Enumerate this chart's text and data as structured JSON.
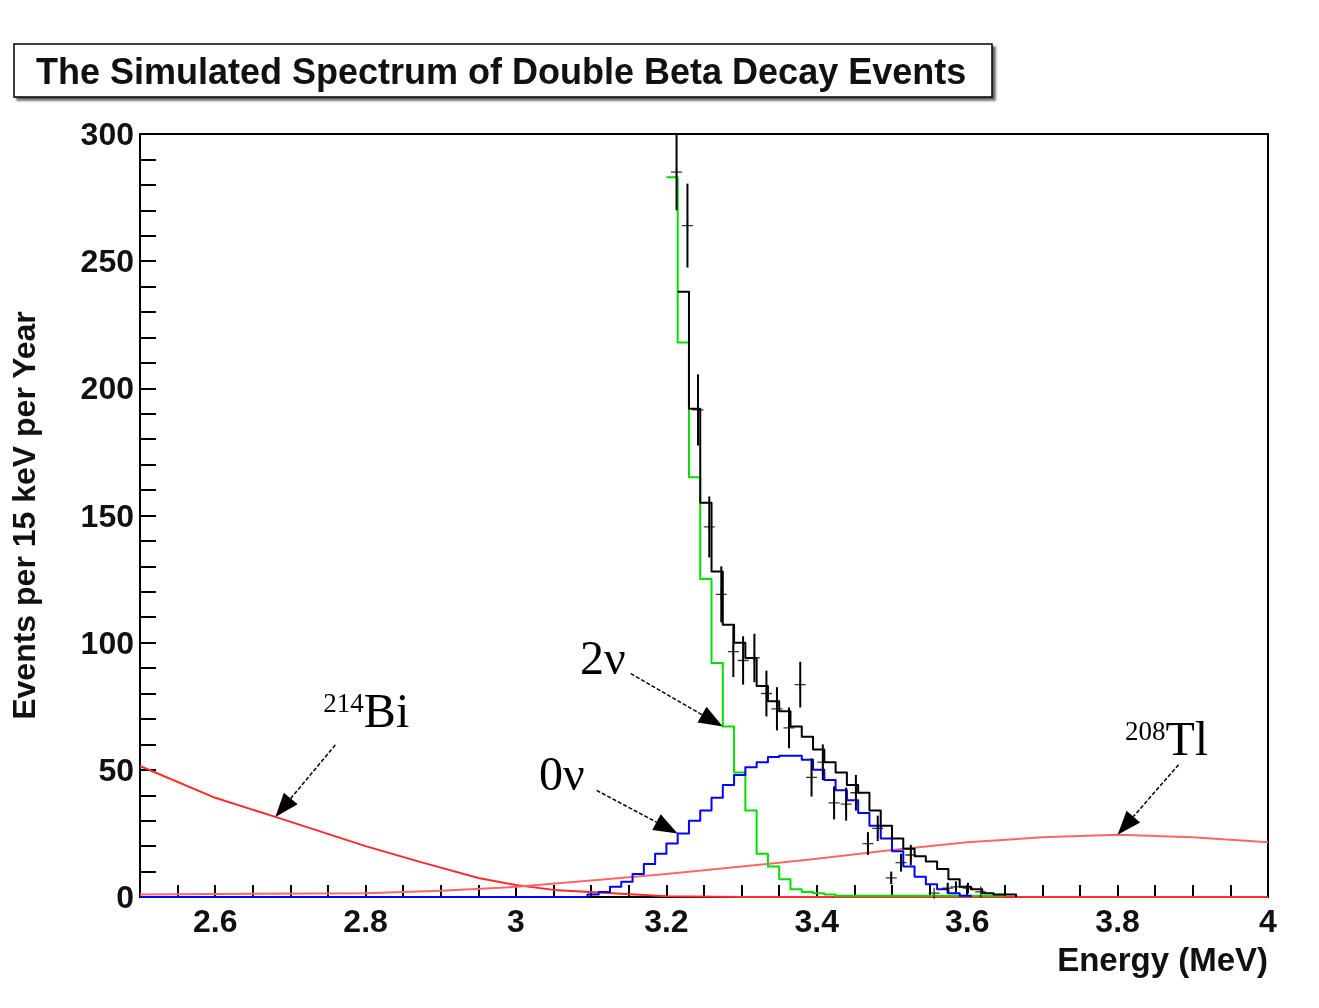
{
  "chart_data": {
    "type": "step",
    "title": "The Simulated Spectrum of Double Beta Decay Events",
    "xlabel": "Energy (MeV)",
    "ylabel": "Events per 15 keV per Year",
    "xlim": [
      2.5,
      4
    ],
    "xticks": [
      {
        "value": 2.55,
        "label": null
      },
      2.6,
      {
        "value": 2.65,
        "label": null
      },
      {
        "value": 2.7,
        "label": null
      },
      {
        "value": 2.75,
        "label": null
      },
      2.8,
      {
        "value": 2.85,
        "label": null
      },
      {
        "value": 2.9,
        "label": null
      },
      {
        "value": 2.95,
        "label": null
      },
      3,
      {
        "value": 3.05,
        "label": null
      },
      {
        "value": 3.1,
        "label": null
      },
      {
        "value": 3.15,
        "label": null
      },
      3.2,
      {
        "value": 3.25,
        "label": null
      },
      {
        "value": 3.3,
        "label": null
      },
      {
        "value": 3.35,
        "label": null
      },
      3.4,
      {
        "value": 3.45,
        "label": null
      },
      {
        "value": 3.5,
        "label": null
      },
      {
        "value": 3.55,
        "label": null
      },
      3.6,
      {
        "value": 3.65,
        "label": null
      },
      {
        "value": 3.7,
        "label": null
      },
      {
        "value": 3.75,
        "label": null
      },
      3.8,
      {
        "value": 3.85,
        "label": null
      },
      {
        "value": 3.9,
        "label": null
      },
      {
        "value": 3.95,
        "label": null
      },
      4
    ],
    "ylim": [
      0,
      300
    ],
    "yticks": [
      0,
      {
        "value": 10,
        "label": null
      },
      {
        "value": 20,
        "label": null
      },
      {
        "value": 30,
        "label": null
      },
      {
        "value": 40,
        "label": null
      },
      50,
      {
        "value": 60,
        "label": null
      },
      {
        "value": 70,
        "label": null
      },
      {
        "value": 80,
        "label": null
      },
      {
        "value": 90,
        "label": null
      },
      100,
      {
        "value": 110,
        "label": null
      },
      {
        "value": 120,
        "label": null
      },
      {
        "value": 130,
        "label": null
      },
      {
        "value": 140,
        "label": null
      },
      150,
      {
        "value": 160,
        "label": null
      },
      {
        "value": 170,
        "label": null
      },
      {
        "value": 180,
        "label": null
      },
      {
        "value": 190,
        "label": null
      },
      200,
      {
        "value": 210,
        "label": null
      },
      {
        "value": 220,
        "label": null
      },
      {
        "value": 230,
        "label": null
      },
      {
        "value": 240,
        "label": null
      },
      250,
      {
        "value": 260,
        "label": null
      },
      {
        "value": 270,
        "label": null
      },
      {
        "value": 280,
        "label": null
      },
      {
        "value": 290,
        "label": null
      },
      300
    ],
    "grid": false,
    "marker": "none",
    "series": [
      {
        "type": "line",
        "color": "#ff2a2a",
        "x": [
          2.5,
          2.6,
          2.68,
          2.8,
          2.87,
          2.95,
          3.0,
          3.05,
          3.2,
          3.3,
          3.5,
          4.0
        ],
        "values": [
          51.5,
          39,
          31.5,
          20,
          14,
          7.5,
          4.7,
          2.8,
          0.3,
          0,
          0,
          0
        ]
      },
      {
        "type": "line",
        "color": "#ff6666",
        "x": [
          2.5,
          2.8,
          2.9,
          3.0,
          3.1,
          3.2,
          3.3,
          3.4,
          3.5,
          3.6,
          3.7,
          3.8,
          3.9,
          4.0
        ],
        "values": [
          1,
          1.5,
          2.5,
          4,
          6.5,
          9,
          12,
          15,
          18.5,
          21.5,
          23.5,
          24.5,
          23.5,
          21.5
        ]
      },
      {
        "color": "#00e000",
        "x": [
          3.2,
          3.215,
          3.23,
          3.245,
          3.26,
          3.275,
          3.29,
          3.305,
          3.32,
          3.335,
          3.35,
          3.365,
          3.38,
          3.395,
          3.41,
          3.425,
          3.44,
          3.455,
          3.47,
          3.485,
          3.5,
          3.515,
          3.53,
          3.545,
          3.56,
          3.575,
          3.59,
          3.605,
          3.62,
          3.635,
          3.65
        ],
        "values": [
          283,
          218,
          165,
          125,
          92,
          67,
          49,
          34,
          17,
          12,
          7,
          3,
          2,
          1.5,
          1,
          0.5,
          0.5,
          0.5,
          0.5,
          0.5,
          0.5,
          0.5,
          0.5,
          0.5,
          0.5,
          0.5,
          0.5,
          0.5,
          0.5,
          0.5,
          0.5
        ]
      },
      {
        "color": "#0000ff",
        "x": [
          2.5,
          3.095,
          3.11,
          3.125,
          3.14,
          3.155,
          3.17,
          3.185,
          3.2,
          3.215,
          3.23,
          3.245,
          3.26,
          3.275,
          3.29,
          3.305,
          3.32,
          3.335,
          3.35,
          3.365,
          3.38,
          3.395,
          3.41,
          3.425,
          3.44,
          3.455,
          3.47,
          3.485,
          3.5,
          3.515,
          3.53,
          3.545,
          3.56,
          3.575,
          3.59,
          3.605
        ],
        "values": [
          0,
          1,
          2,
          4,
          6,
          9,
          13,
          17,
          21,
          25,
          30,
          34,
          39,
          44,
          48,
          51,
          53,
          55,
          55.5,
          55.5,
          54,
          50,
          46,
          42,
          38,
          33,
          28,
          23,
          18,
          12,
          8,
          5,
          3,
          1.5,
          0.5,
          0
        ]
      },
      {
        "color": "#000000",
        "x": [
          3.215,
          3.23,
          3.245,
          3.26,
          3.275,
          3.29,
          3.305,
          3.32,
          3.335,
          3.35,
          3.365,
          3.38,
          3.395,
          3.41,
          3.425,
          3.44,
          3.455,
          3.47,
          3.485,
          3.5,
          3.515,
          3.53,
          3.545,
          3.56,
          3.575,
          3.59,
          3.605,
          3.62,
          3.635,
          3.65,
          3.665
        ],
        "values": [
          238,
          192,
          155,
          128,
          107,
          100,
          94,
          83,
          77,
          73,
          67,
          63,
          58,
          53,
          49,
          44,
          41,
          34,
          28,
          23,
          19,
          16,
          14,
          11,
          7,
          4,
          3,
          1.5,
          1,
          1,
          0
        ]
      },
      {
        "type": "scatter",
        "marker": "cross",
        "color": "#000000",
        "x": [
          3.2135,
          3.228,
          3.242,
          3.257,
          3.273,
          3.289,
          3.302,
          3.317,
          3.333,
          3.347,
          3.363,
          3.378,
          3.393,
          3.408,
          3.423,
          3.439,
          3.452,
          3.468,
          3.481,
          3.499,
          3.512,
          3.525,
          3.556,
          3.574,
          3.585,
          3.601,
          3.618
        ],
        "values": [
          285,
          264,
          191.5,
          145.5,
          119,
          96.5,
          93,
          94,
          80,
          74,
          66.5,
          83.5,
          47,
          53,
          37,
          36.5,
          41,
          21,
          27,
          7.5,
          13.5,
          16.5,
          1.5,
          3.5,
          4,
          3.5,
          2
        ],
        "errors": [
          15,
          16.5,
          14,
          12,
          11,
          10,
          9.5,
          9.5,
          9,
          8.5,
          8,
          9,
          7.5,
          7,
          6.5,
          6.5,
          7,
          4.5,
          5,
          2.5,
          3.5,
          4,
          null,
          2,
          2,
          2,
          null
        ]
      }
    ],
    "annotations": [
      {
        "text": "$^{214}$Bi",
        "x": 2.68,
        "y": 31.5
      },
      {
        "text": "2ν",
        "x": 3.275,
        "y": 67
      },
      {
        "text": "0ν",
        "x": 3.215,
        "y": 25
      },
      {
        "text": "$^{208}$Tl",
        "x": 3.8,
        "y": 24.5
      }
    ]
  }
}
